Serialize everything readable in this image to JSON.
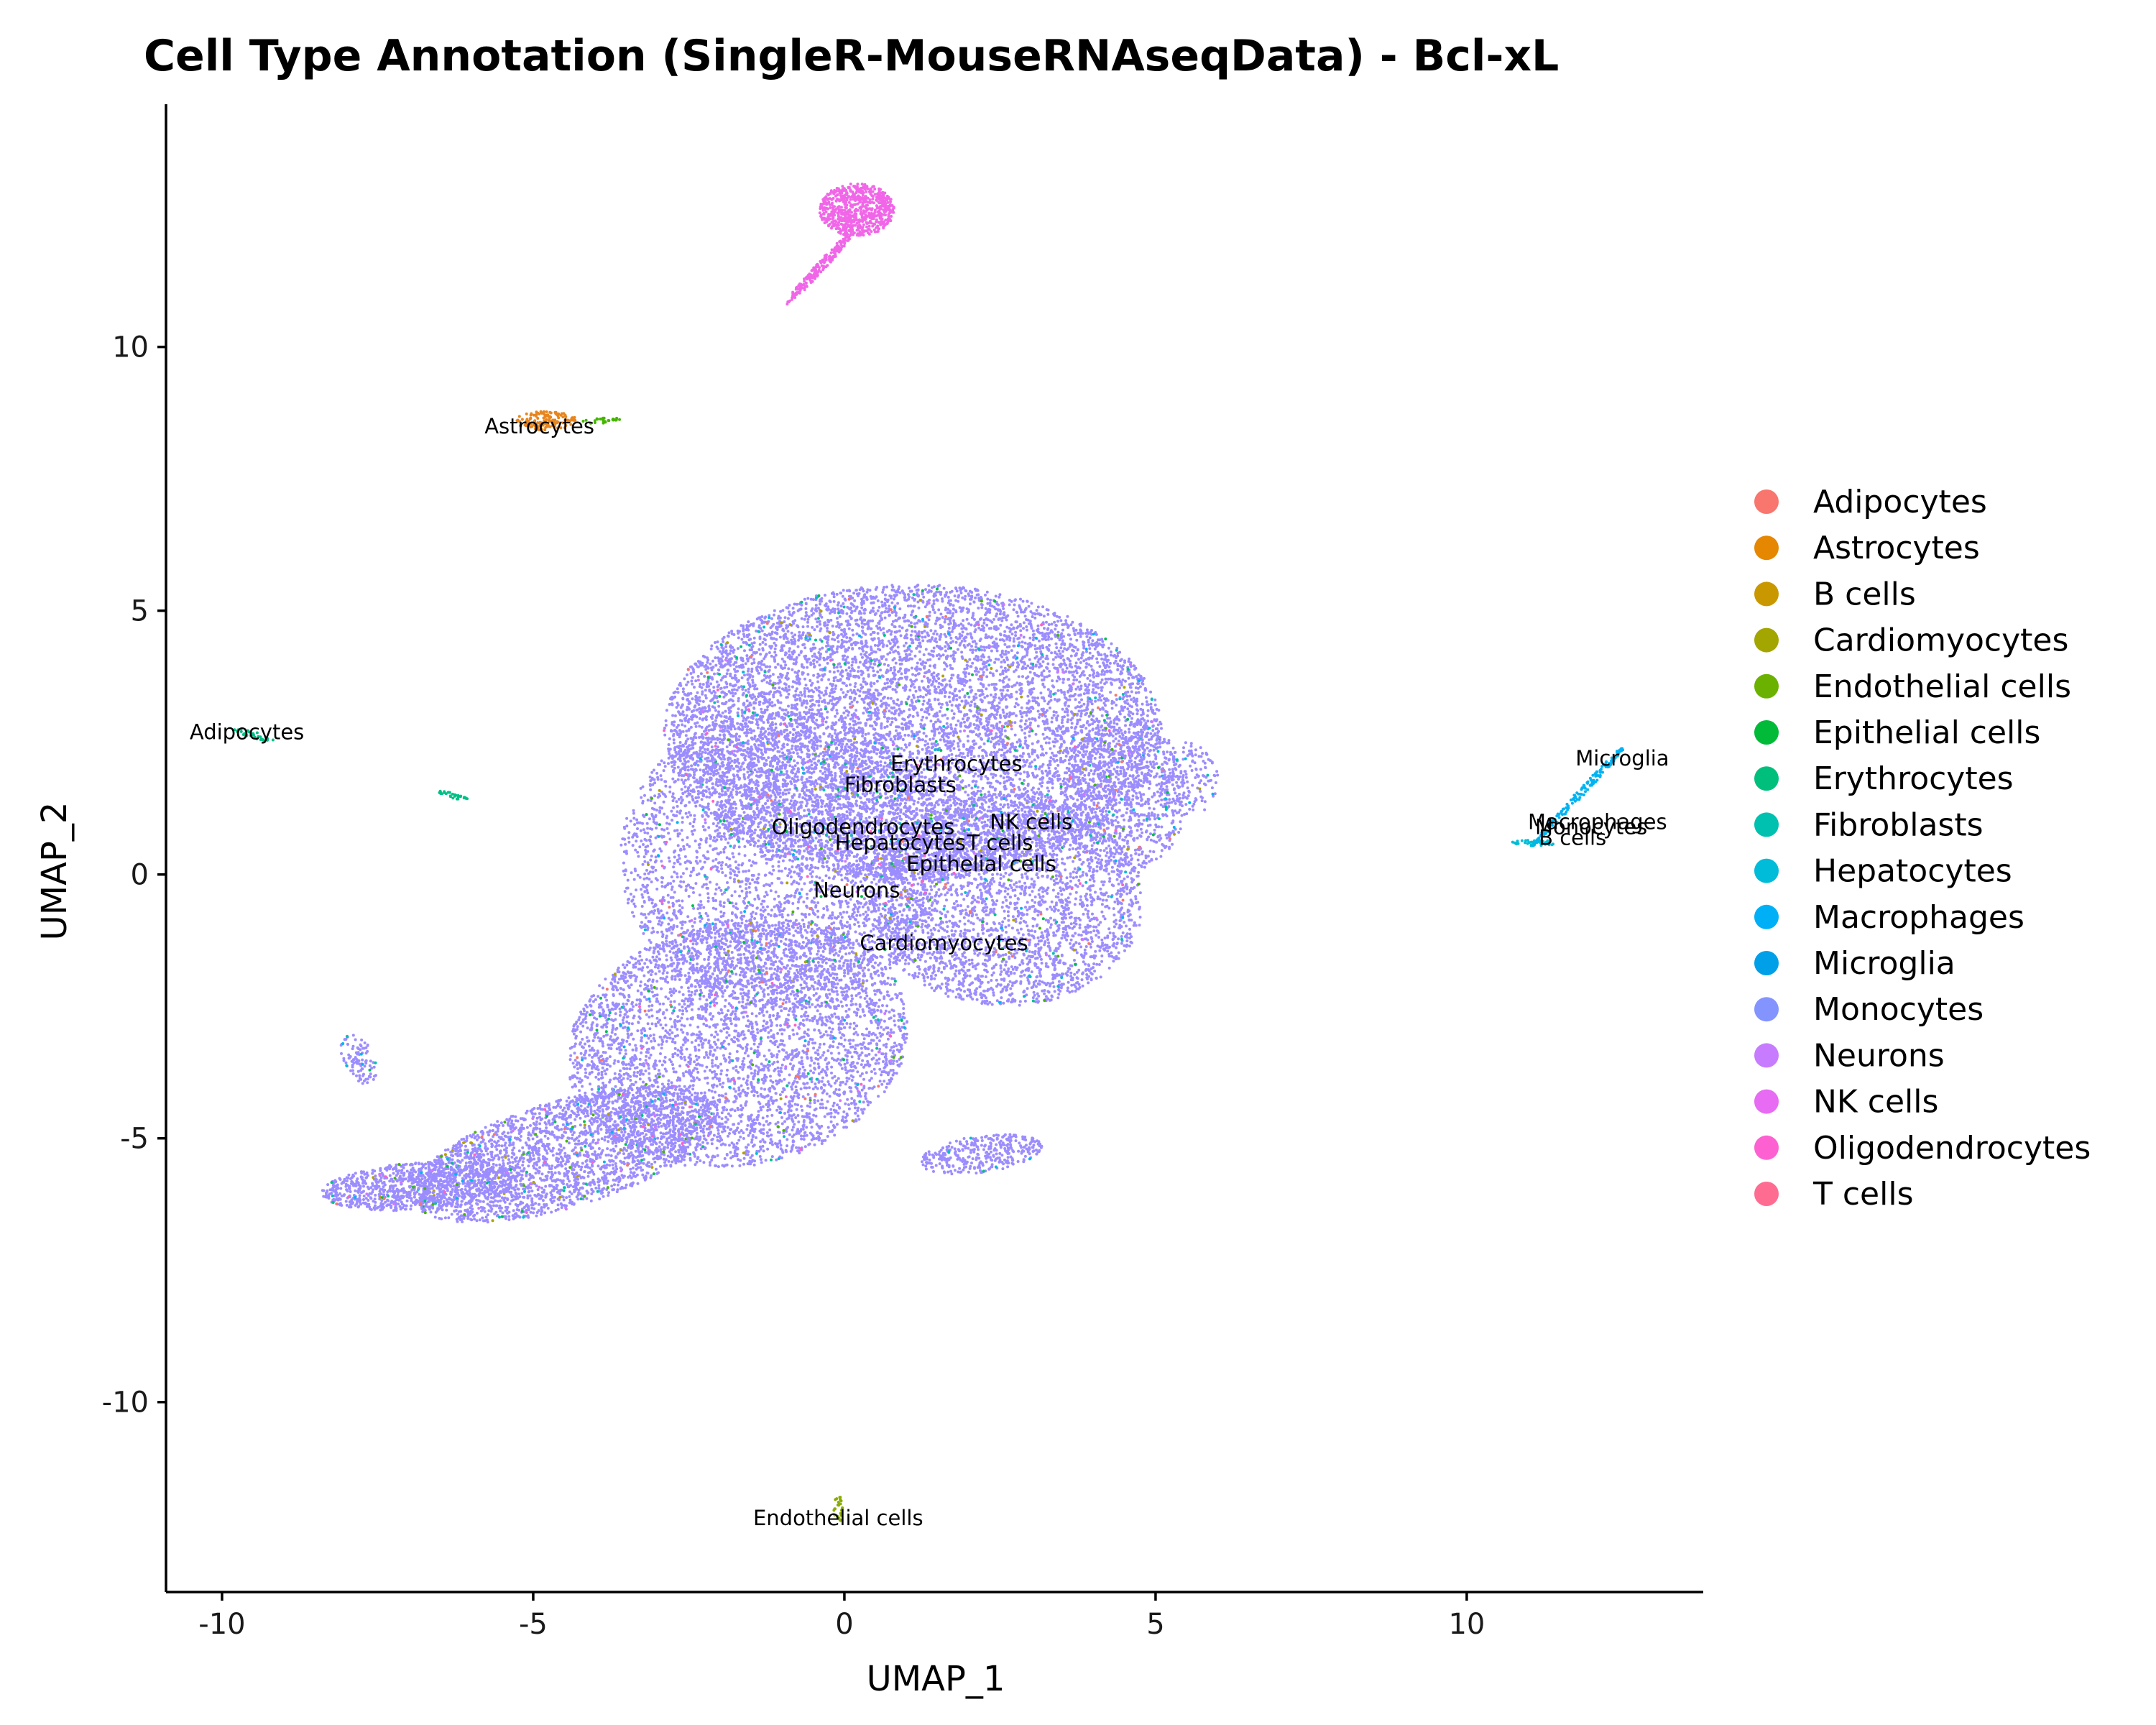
{
  "chart_data": {
    "type": "scatter",
    "title": "Cell Type Annotation (SingleR-MouseRNAseqData) - Bcl-xL",
    "xlabel": "UMAP_1",
    "ylabel": "UMAP_2",
    "xlim": [
      -10.9,
      13.8
    ],
    "ylim": [
      -13.6,
      14.6
    ],
    "x_ticks": [
      -10,
      -5,
      0,
      5,
      10
    ],
    "x_tick_labels": [
      "-10",
      "-5",
      "0",
      "5",
      "10"
    ],
    "y_ticks": [
      -10,
      -5,
      0,
      5,
      10
    ],
    "y_tick_labels": [
      "-10",
      "-5",
      "0",
      "5",
      "10"
    ],
    "grid": false,
    "legend_position": "right",
    "series": [
      {
        "name": "Adipocytes",
        "color": "#F8766D"
      },
      {
        "name": "Astrocytes",
        "color": "#E7851E"
      },
      {
        "name": "B cells",
        "color": "#D09400"
      },
      {
        "name": "Cardiomyocytes",
        "color": "#B2A100"
      },
      {
        "name": "Endothelial cells",
        "color": "#89AC00"
      },
      {
        "name": "Epithelial cells",
        "color": "#45B500"
      },
      {
        "name": "Erythrocytes",
        "color": "#00BC51"
      },
      {
        "name": "Fibroblasts",
        "color": "#00C087"
      },
      {
        "name": "Hepatocytes",
        "color": "#00C0B2"
      },
      {
        "name": "Macrophages",
        "color": "#00BCD6"
      },
      {
        "name": "Microglia",
        "color": "#00B3F2"
      },
      {
        "name": "Monocytes",
        "color": "#29A3FF"
      },
      {
        "name": "Neurons",
        "color": "#9C8DFF"
      },
      {
        "name": "NK cells",
        "color": "#D277FF"
      },
      {
        "name": "Oligodendrocytes",
        "color": "#F166E8"
      },
      {
        "name": "T cells",
        "color": "#FF61C7"
      }
    ],
    "legend_colors": [
      "#F8766D",
      "#E58700",
      "#C99800",
      "#A3A500",
      "#6BB100",
      "#00BA38",
      "#00BF7D",
      "#00C0AF",
      "#00BCD8",
      "#00B0F6",
      "#00A0E8",
      "#8494FF",
      "#C77CFF",
      "#E76BF3",
      "#FD61D1",
      "#FF6C91"
    ],
    "cluster_labels": [
      {
        "text": "Astrocytes",
        "x": -4.9,
        "y": 8.5
      },
      {
        "text": "Adipocytes",
        "x": -9.6,
        "y": 2.7
      },
      {
        "text": "Erythrocytes",
        "x": 1.8,
        "y": 2.1
      },
      {
        "text": "Fibroblasts",
        "x": 0.9,
        "y": 1.7
      },
      {
        "text": "NK cells",
        "x": 3.0,
        "y": 1.0
      },
      {
        "text": "Oligodendrocytes",
        "x": 0.3,
        "y": 0.9
      },
      {
        "text": "T cells",
        "x": 2.5,
        "y": 0.6
      },
      {
        "text": "Hepatocytes",
        "x": 0.9,
        "y": 0.6
      },
      {
        "text": "Epithelial cells",
        "x": 2.2,
        "y": 0.2
      },
      {
        "text": "Neurons",
        "x": 0.2,
        "y": -0.3
      },
      {
        "text": "Cardiomyocytes",
        "x": 1.6,
        "y": -1.3
      },
      {
        "text": "Microglia",
        "x": 12.5,
        "y": 2.2
      },
      {
        "text": "Macrophages",
        "x": 12.1,
        "y": 1.0
      },
      {
        "text": "Monocytes",
        "x": 12.0,
        "y": 0.9
      },
      {
        "text": "B cells",
        "x": 11.7,
        "y": 0.7
      },
      {
        "text": "Endothelial cells",
        "x": -0.1,
        "y": -12.2
      }
    ],
    "clusters": [
      {
        "x": 1.1,
        "y": 2.7,
        "rx": 4.0,
        "ry": 2.8,
        "n": 9000,
        "rot": 0,
        "label": "Neurons"
      },
      {
        "x": -1.0,
        "y": 0.3,
        "rx": 2.6,
        "ry": 2.8,
        "n": 3500,
        "rot": 0,
        "label": "Neurons"
      },
      {
        "x": 2.6,
        "y": -0.5,
        "rx": 2.2,
        "ry": 2.0,
        "n": 3000,
        "rot": 0,
        "label": "Neurons"
      },
      {
        "x": -1.7,
        "y": -3.2,
        "rx": 2.8,
        "ry": 2.3,
        "n": 4200,
        "rot": 20,
        "label": "Neurons"
      },
      {
        "x": -4.5,
        "y": -5.3,
        "rx": 2.6,
        "ry": 1.0,
        "n": 2600,
        "rot": 20,
        "label": "Neurons"
      },
      {
        "x": -6.8,
        "y": -5.9,
        "rx": 1.6,
        "ry": 0.45,
        "n": 1000,
        "rot": 5,
        "label": "Neurons"
      },
      {
        "x": 4.5,
        "y": 1.5,
        "rx": 1.0,
        "ry": 1.5,
        "n": 900,
        "rot": 0,
        "label": "Neurons"
      },
      {
        "x": 5.5,
        "y": 1.8,
        "rx": 0.5,
        "ry": 0.7,
        "n": 150,
        "rot": 0,
        "label": "Neurons"
      },
      {
        "x": 2.2,
        "y": -5.3,
        "rx": 1.0,
        "ry": 0.35,
        "n": 350,
        "rot": 10,
        "label": "Neurons"
      },
      {
        "x": -7.8,
        "y": -3.5,
        "rx": 0.25,
        "ry": 0.5,
        "n": 100,
        "rot": 20,
        "label": "Neurons"
      },
      {
        "x": 0.2,
        "y": 12.6,
        "rx": 0.6,
        "ry": 0.5,
        "n": 700,
        "rot": 0,
        "label": "Oligodendrocytes"
      },
      {
        "x": -0.4,
        "y": 11.5,
        "rx": 0.9,
        "ry": 0.08,
        "n": 200,
        "rot": 52,
        "label": "Oligodendrocytes"
      },
      {
        "x": -4.8,
        "y": 8.6,
        "rx": 0.5,
        "ry": 0.18,
        "n": 150,
        "rot": 0,
        "label": "Astrocytes"
      },
      {
        "x": -3.9,
        "y": 8.6,
        "rx": 0.35,
        "ry": 0.05,
        "n": 25,
        "rot": 5,
        "label": "Epithelial cells"
      },
      {
        "x": -9.5,
        "y": 2.65,
        "rx": 0.35,
        "ry": 0.06,
        "n": 30,
        "rot": -20,
        "label": "Fibroblasts"
      },
      {
        "x": -6.3,
        "y": 1.5,
        "rx": 0.25,
        "ry": 0.05,
        "n": 30,
        "rot": -15,
        "label": "Fibroblasts"
      },
      {
        "x": 11.8,
        "y": 1.5,
        "rx": 1.3,
        "ry": 0.06,
        "n": 160,
        "rot": 52,
        "label": "Microglia"
      },
      {
        "x": 11.1,
        "y": 0.6,
        "rx": 0.4,
        "ry": 0.05,
        "n": 40,
        "rot": 0,
        "label": "Macrophages"
      },
      {
        "x": -0.1,
        "y": -12.0,
        "rx": 0.07,
        "ry": 0.3,
        "n": 25,
        "rot": 0,
        "label": "Endothelial cells"
      }
    ]
  }
}
